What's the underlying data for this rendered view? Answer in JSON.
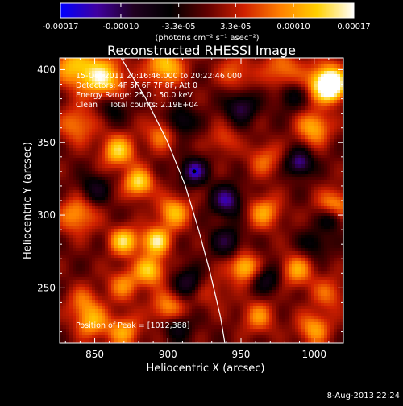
{
  "chart_data": {
    "type": "heatmap",
    "title": "Reconstructed RHESSI Image",
    "xlabel": "Heliocentric X (arcsec)",
    "ylabel": "Heliocentric Y (arcsec)",
    "xlim": [
      826,
      1020
    ],
    "ylim": [
      212,
      408
    ],
    "x_ticks": [
      850,
      900,
      950,
      1000
    ],
    "y_ticks": [
      250,
      300,
      350,
      400
    ],
    "colorbar": {
      "range": [
        -0.00017,
        0.00017
      ],
      "tick_values": [
        -0.00017,
        -0.0001,
        -3.3e-05,
        3.3e-05,
        0.0001,
        0.00017
      ],
      "tick_labels": [
        "-0.00017",
        "-0.00010",
        "-3.3e-05",
        "3.3e-05",
        "0.00010",
        "0.00017"
      ],
      "unit_label": "(photons cm⁻² s⁻¹ asec⁻²)",
      "colormap": [
        "#0000ff",
        "#4000a0",
        "#200020",
        "#000000",
        "#600000",
        "#d02000",
        "#ff8000",
        "#ffd000",
        "#ffffff"
      ]
    },
    "annotations": {
      "time_range": "15-Oct-2011 20:16:46.000 to 20:22:46.000",
      "detectors": "Detectors: 4F 5F 6F 7F 8F, Att 0",
      "energy": "Energy Range: 25.0 - 50.0 keV",
      "method": "Clean     Total counts: 2.19E+04",
      "peak": "Position of Peak = [1012,388]"
    },
    "limb_curve": [
      [
        868,
        408
      ],
      [
        885,
        380
      ],
      [
        900,
        350
      ],
      [
        912,
        320
      ],
      [
        921,
        290
      ],
      [
        929,
        260
      ],
      [
        936,
        230
      ],
      [
        939,
        212
      ]
    ],
    "sources": [
      {
        "x": 836,
        "y": 402,
        "v": 0.8,
        "r": 10
      },
      {
        "x": 856,
        "y": 394,
        "v": 1.0,
        "r": 10
      },
      {
        "x": 898,
        "y": 402,
        "v": 0.9,
        "r": 9
      },
      {
        "x": 1008,
        "y": 392,
        "v": 1.0,
        "r": 9
      },
      {
        "x": 1012,
        "y": 388,
        "v": 1.0,
        "r": 7
      },
      {
        "x": 978,
        "y": 400,
        "v": 0.6,
        "r": 9
      },
      {
        "x": 946,
        "y": 398,
        "v": 0.5,
        "r": 8
      },
      {
        "x": 838,
        "y": 362,
        "v": 0.6,
        "r": 9
      },
      {
        "x": 866,
        "y": 344,
        "v": 0.9,
        "r": 8
      },
      {
        "x": 880,
        "y": 322,
        "v": 1.0,
        "r": 7
      },
      {
        "x": 870,
        "y": 282,
        "v": 0.95,
        "r": 7
      },
      {
        "x": 892,
        "y": 282,
        "v": 1.0,
        "r": 7
      },
      {
        "x": 838,
        "y": 300,
        "v": 0.7,
        "r": 9
      },
      {
        "x": 904,
        "y": 302,
        "v": 0.8,
        "r": 8
      },
      {
        "x": 896,
        "y": 356,
        "v": 0.6,
        "r": 8
      },
      {
        "x": 888,
        "y": 262,
        "v": 0.9,
        "r": 7
      },
      {
        "x": 870,
        "y": 252,
        "v": 0.6,
        "r": 8
      },
      {
        "x": 842,
        "y": 240,
        "v": 0.5,
        "r": 8
      },
      {
        "x": 848,
        "y": 226,
        "v": 0.7,
        "r": 8
      },
      {
        "x": 870,
        "y": 220,
        "v": 0.7,
        "r": 8
      },
      {
        "x": 900,
        "y": 236,
        "v": 0.7,
        "r": 8
      },
      {
        "x": 930,
        "y": 248,
        "v": 0.3,
        "r": 9
      },
      {
        "x": 952,
        "y": 264,
        "v": 0.9,
        "r": 7
      },
      {
        "x": 966,
        "y": 302,
        "v": 0.7,
        "r": 8
      },
      {
        "x": 966,
        "y": 338,
        "v": 0.5,
        "r": 8
      },
      {
        "x": 1000,
        "y": 360,
        "v": 0.8,
        "r": 8
      },
      {
        "x": 1014,
        "y": 306,
        "v": 0.8,
        "r": 8
      },
      {
        "x": 988,
        "y": 262,
        "v": 0.7,
        "r": 8
      },
      {
        "x": 1010,
        "y": 246,
        "v": 0.5,
        "r": 8
      },
      {
        "x": 962,
        "y": 230,
        "v": 0.6,
        "r": 8
      },
      {
        "x": 1000,
        "y": 222,
        "v": 0.7,
        "r": 8
      },
      {
        "x": 938,
        "y": 352,
        "v": 0.4,
        "r": 7
      },
      {
        "x": 940,
        "y": 310,
        "v": -0.9,
        "r": 7
      },
      {
        "x": 918,
        "y": 330,
        "v": -1.0,
        "r": 6
      },
      {
        "x": 908,
        "y": 364,
        "v": -0.6,
        "r": 7
      },
      {
        "x": 950,
        "y": 374,
        "v": -0.7,
        "r": 7
      },
      {
        "x": 990,
        "y": 336,
        "v": -0.9,
        "r": 6
      },
      {
        "x": 1012,
        "y": 298,
        "v": -0.7,
        "r": 6
      },
      {
        "x": 968,
        "y": 256,
        "v": -0.5,
        "r": 7
      },
      {
        "x": 914,
        "y": 254,
        "v": -0.6,
        "r": 7
      },
      {
        "x": 940,
        "y": 282,
        "v": -0.6,
        "r": 7
      },
      {
        "x": 850,
        "y": 318,
        "v": -0.5,
        "r": 7
      },
      {
        "x": 862,
        "y": 374,
        "v": -0.4,
        "r": 7
      },
      {
        "x": 906,
        "y": 224,
        "v": -0.5,
        "r": 7
      },
      {
        "x": 984,
        "y": 382,
        "v": -0.4,
        "r": 7
      },
      {
        "x": 1000,
        "y": 280,
        "v": -0.4,
        "r": 7
      }
    ]
  },
  "footer": {
    "date": "8-Aug-2013 22:24"
  }
}
